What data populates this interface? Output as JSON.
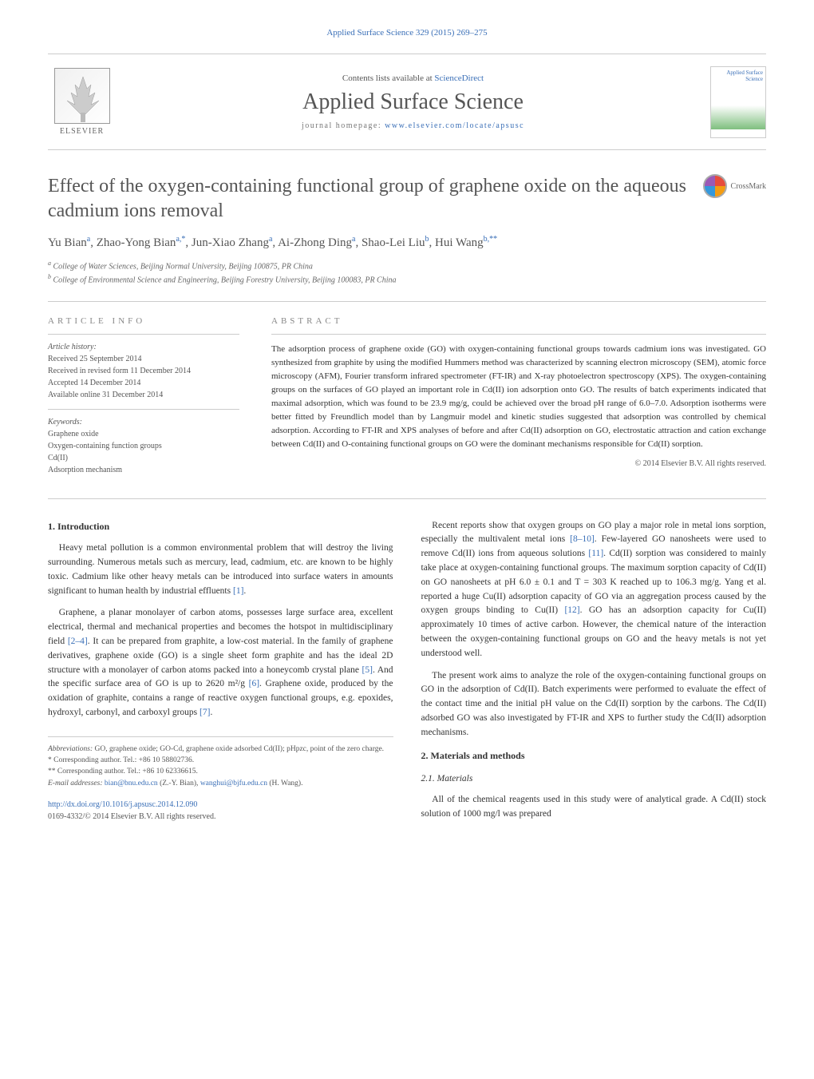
{
  "header": {
    "citation": "Applied Surface Science 329 (2015) 269–275",
    "contents_prefix": "Contents lists available at ",
    "contents_link": "ScienceDirect",
    "journal_name": "Applied Surface Science",
    "homepage_prefix": "journal homepage: ",
    "homepage_link": "www.elsevier.com/locate/apsusc",
    "publisher": "ELSEVIER",
    "cover_title": "Applied Surface Science"
  },
  "crossmark": {
    "label": "CrossMark"
  },
  "article": {
    "title": "Effect of the oxygen-containing functional group of graphene oxide on the aqueous cadmium ions removal",
    "authors_html": "Yu Bian<sup>a</sup>, Zhao-Yong Bian<sup>a,*</sup>, Jun-Xiao Zhang<sup>a</sup>, Ai-Zhong Ding<sup>a</sup>, Shao-Lei Liu<sup>b</sup>, Hui Wang<sup>b,**</sup>",
    "affiliations": [
      "a College of Water Sciences, Beijing Normal University, Beijing 100875, PR China",
      "b College of Environmental Science and Engineering, Beijing Forestry University, Beijing 100083, PR China"
    ]
  },
  "info": {
    "label": "ARTICLE INFO",
    "history_label": "Article history:",
    "history": [
      "Received 25 September 2014",
      "Received in revised form 11 December 2014",
      "Accepted 14 December 2014",
      "Available online 31 December 2014"
    ],
    "keywords_label": "Keywords:",
    "keywords": [
      "Graphene oxide",
      "Oxygen-containing function groups",
      "Cd(II)",
      "Adsorption mechanism"
    ]
  },
  "abstract": {
    "label": "ABSTRACT",
    "text": "The adsorption process of graphene oxide (GO) with oxygen-containing functional groups towards cadmium ions was investigated. GO synthesized from graphite by using the modified Hummers method was characterized by scanning electron microscopy (SEM), atomic force microscopy (AFM), Fourier transform infrared spectrometer (FT-IR) and X-ray photoelectron spectroscopy (XPS). The oxygen-containing groups on the surfaces of GO played an important role in Cd(II) ion adsorption onto GO. The results of batch experiments indicated that maximal adsorption, which was found to be 23.9 mg/g, could be achieved over the broad pH range of 6.0–7.0. Adsorption isotherms were better fitted by Freundlich model than by Langmuir model and kinetic studies suggested that adsorption was controlled by chemical adsorption. According to FT-IR and XPS analyses of before and after Cd(II) adsorption on GO, electrostatic attraction and cation exchange between Cd(II) and O-containing functional groups on GO were the dominant mechanisms responsible for Cd(II) sorption.",
    "copyright": "© 2014 Elsevier B.V. All rights reserved."
  },
  "body": {
    "left": {
      "h_intro": "1. Introduction",
      "p1": "Heavy metal pollution is a common environmental problem that will destroy the living surrounding. Numerous metals such as mercury, lead, cadmium, etc. are known to be highly toxic. Cadmium like other heavy metals can be introduced into surface waters in amounts significant to human health by industrial effluents ",
      "p1_ref": "[1]",
      "p1_suffix": ".",
      "p2a": "Graphene, a planar monolayer of carbon atoms, possesses large surface area, excellent electrical, thermal and mechanical properties and becomes the hotspot in multidisciplinary field ",
      "p2_ref1": "[2–4]",
      "p2b": ". It can be prepared from graphite, a low-cost material. In the family of graphene derivatives, graphene oxide (GO) is a single sheet form graphite and has the ideal 2D structure with a monolayer of carbon atoms packed into a honeycomb crystal plane ",
      "p2_ref2": "[5]",
      "p2c": ". And the specific surface area of GO is up to 2620 m²/g ",
      "p2_ref3": "[6]",
      "p2d": ". Graphene oxide, produced by the oxidation of graphite, contains a range of reactive oxygen functional groups, e.g. epoxides, hydroxyl, carbonyl, and carboxyl groups ",
      "p2_ref4": "[7]",
      "p2e": "."
    },
    "right": {
      "p1a": "Recent reports show that oxygen groups on GO play a major role in metal ions sorption, especially the multivalent metal ions ",
      "p1_ref1": "[8–10]",
      "p1b": ". Few-layered GO nanosheets were used to remove Cd(II) ions from aqueous solutions ",
      "p1_ref2": "[11]",
      "p1c": ". Cd(II) sorption was considered to mainly take place at oxygen-containing functional groups. The maximum sorption capacity of Cd(II) on GO nanosheets at pH 6.0 ± 0.1 and T = 303 K reached up to 106.3 mg/g. Yang et al. reported a huge Cu(II) adsorption capacity of GO via an aggregation process caused by the oxygen groups binding to Cu(II) ",
      "p1_ref3": "[12]",
      "p1d": ". GO has an adsorption capacity for Cu(II) approximately 10 times of active carbon. However, the chemical nature of the interaction between the oxygen-containing functional groups on GO and the heavy metals is not yet understood well.",
      "p2": "The present work aims to analyze the role of the oxygen-containing functional groups on GO in the adsorption of Cd(II). Batch experiments were performed to evaluate the effect of the contact time and the initial pH value on the Cd(II) sorption by the carbons. The Cd(II) adsorbed GO was also investigated by FT-IR and XPS to further study the Cd(II) adsorption mechanisms.",
      "h_mm": "2. Materials and methods",
      "h_mat": "2.1. Materials",
      "p3": "All of the chemical reagents used in this study were of analytical grade. A Cd(II) stock solution of 1000 mg/l was prepared"
    }
  },
  "footnotes": {
    "abbrev_label": "Abbreviations:",
    "abbrev": " GO, graphene oxide; GO-Cd, graphene oxide adsorbed Cd(II); pHpzc, point of the zero charge.",
    "corr1": "* Corresponding author. Tel.: +86 10 58802736.",
    "corr2": "** Corresponding author. Tel.: +86 10 62336615.",
    "email_label": "E-mail addresses: ",
    "email1": "bian@bnu.edu.cn",
    "email1_name": " (Z.-Y. Bian), ",
    "email2": "wanghui@bjfu.edu.cn",
    "email2_name": " (H. Wang)."
  },
  "footer": {
    "doi": "http://dx.doi.org/10.1016/j.apsusc.2014.12.090",
    "issn": "0169-4332/© 2014 Elsevier B.V. All rights reserved."
  },
  "colors": {
    "link": "#3a6fb7",
    "text": "#333333",
    "muted": "#555555",
    "border": "#cccccc"
  }
}
